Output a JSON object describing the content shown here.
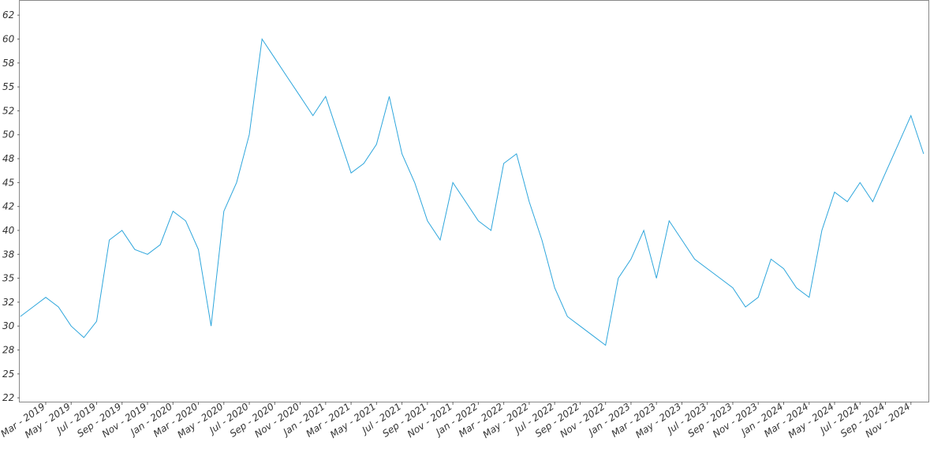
{
  "chart_data": {
    "type": "line",
    "categories": [
      null,
      null,
      "Mar - 2019",
      null,
      "May - 2019",
      null,
      "Jul - 2019",
      null,
      "Sep - 2019",
      null,
      "Nov - 2019",
      null,
      "Jan - 2020",
      null,
      "Mar - 2020",
      null,
      "May - 2020",
      null,
      "Jul - 2020",
      null,
      "Sep - 2020",
      null,
      "Nov - 2020",
      null,
      "Jan - 2021",
      null,
      "Mar - 2021",
      null,
      "May - 2021",
      null,
      "Jul - 2021",
      null,
      "Sep - 2021",
      null,
      "Nov - 2021",
      null,
      "Jan - 2022",
      null,
      "Mar - 2022",
      null,
      "May - 2022",
      null,
      "Jul - 2022",
      null,
      "Sep - 2022",
      null,
      "Nov - 2022",
      null,
      "Jan - 2023",
      null,
      "Mar - 2023",
      null,
      "May - 2023",
      null,
      "Jul - 2023",
      null,
      "Sep - 2023",
      null,
      "Nov - 2023",
      null,
      "Jan - 2024",
      null,
      "Mar - 2024",
      null,
      "May - 2024",
      null,
      "Jul - 2024",
      null,
      "Sep - 2024",
      null,
      "Nov - 2024",
      null
    ],
    "series": [
      {
        "color": "#2ea6dc",
        "values": [
          31,
          32,
          33,
          32,
          30,
          28.8,
          30.5,
          39,
          40,
          38,
          37.5,
          38.5,
          42,
          41,
          38,
          30,
          42,
          45,
          50,
          60,
          58,
          56,
          54,
          52,
          54,
          50,
          46,
          47,
          49,
          54,
          48,
          45,
          41,
          39,
          45,
          43,
          41,
          40,
          47,
          48,
          43,
          39,
          34,
          31,
          30,
          29,
          28,
          35,
          37,
          40,
          35,
          41,
          39,
          37,
          36,
          35,
          34,
          32,
          33,
          37,
          36,
          34,
          33,
          40,
          44,
          43,
          45,
          43,
          46,
          49,
          52,
          48
        ]
      }
    ],
    "ylim": [
      22.1,
      64
    ],
    "yticks": [
      {
        "value": 22.5,
        "label": "22"
      },
      25,
      {
        "value": 27.5,
        "label": "28"
      },
      30,
      {
        "value": 32.5,
        "label": "32"
      },
      35,
      {
        "value": 37.5,
        "label": "38"
      },
      40,
      {
        "value": 42.5,
        "label": "42"
      },
      45,
      {
        "value": 47.5,
        "label": "48"
      },
      50,
      {
        "value": 52.5,
        "label": "52"
      },
      55,
      {
        "value": 57.5,
        "label": "58"
      },
      60,
      {
        "value": 62.5,
        "label": "62"
      }
    ]
  }
}
